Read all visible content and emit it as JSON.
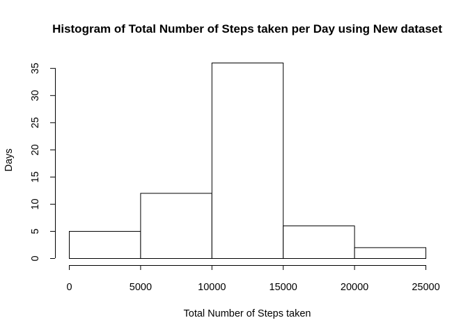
{
  "chart_data": {
    "type": "bar",
    "title": "Histogram of Total Number of Steps taken per Day using New dataset",
    "xlabel": "Total Number of Steps taken",
    "ylabel": "Days",
    "bins": [
      {
        "from": 0,
        "to": 5000,
        "value": 5
      },
      {
        "from": 5000,
        "to": 10000,
        "value": 12
      },
      {
        "from": 10000,
        "to": 15000,
        "value": 36
      },
      {
        "from": 15000,
        "to": 20000,
        "value": 6
      },
      {
        "from": 20000,
        "to": 25000,
        "value": 2
      }
    ],
    "xticks": [
      0,
      5000,
      10000,
      15000,
      20000,
      25000
    ],
    "yticks": [
      0,
      5,
      10,
      15,
      20,
      25,
      30,
      35
    ],
    "xlim": [
      0,
      25000
    ],
    "ylim": [
      0,
      36
    ],
    "grid": false,
    "bar_fill": "#ffffff",
    "bar_stroke": "#000000"
  }
}
